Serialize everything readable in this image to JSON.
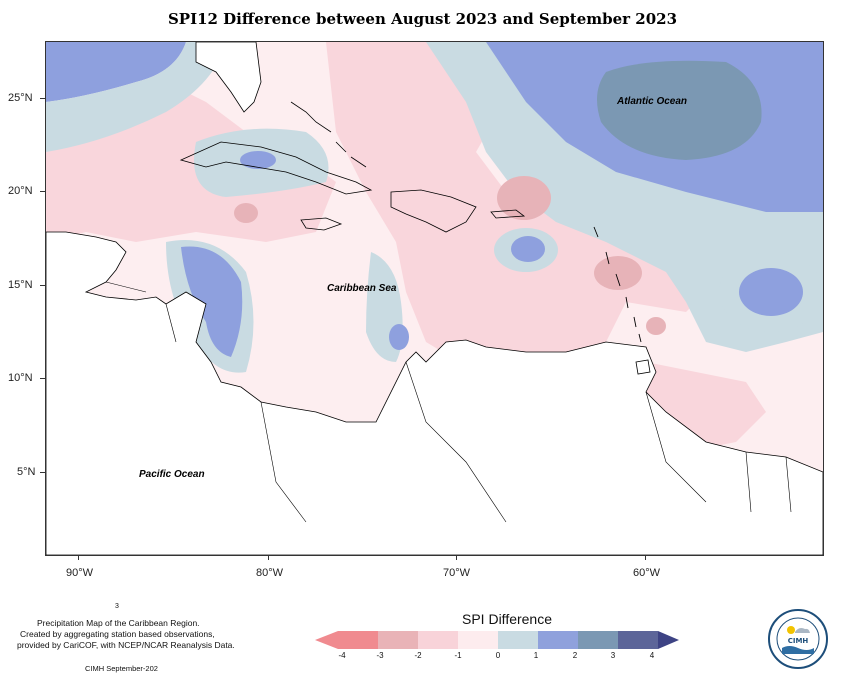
{
  "title": "SPI12 Difference between August 2023 and September 2023",
  "labels": {
    "atlantic": "Atlantic Ocean",
    "caribbean": "Caribbean Sea",
    "pacific": "Pacific Ocean"
  },
  "lat_labels": [
    "25°N",
    "20°N",
    "15°N",
    "10°N",
    "5°N"
  ],
  "lon_labels": [
    "90°W",
    "80°W",
    "70°W",
    "60°W"
  ],
  "credits": {
    "line0": "3",
    "line1": "Precipitation Map of the Caribbean Region.",
    "line2": "Created by aggregating station based observations,",
    "line3": "provided by CariCOF, with NCEP/NCAR Reanalysis Data.",
    "footer": "CIMH September-202"
  },
  "legend": {
    "title": "SPI Difference",
    "ticks": [
      "-4",
      "-3",
      "-2",
      "-1",
      "0",
      "1",
      "2",
      "3",
      "4"
    ],
    "colors": [
      "#f08a8f",
      "#e9b3b7",
      "#f8d3d9",
      "#fdecee",
      "#c9dbe2",
      "#8fa1dc",
      "#7b98b3",
      "#5c6599",
      "#3d4384"
    ]
  },
  "logo": {
    "text": "CIMH"
  },
  "map_colors": {
    "ocean_land": "#ffffff",
    "neg1": "#fbe7ea",
    "neg2": "#f9d3d9",
    "neg3": "#e7b3b8",
    "pos1": "#c9dbe2",
    "pos2": "#8ea0de",
    "pos3": "#7b98b3"
  }
}
